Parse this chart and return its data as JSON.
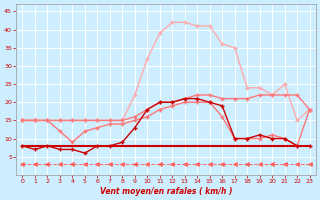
{
  "x": [
    0,
    1,
    2,
    3,
    4,
    5,
    6,
    7,
    8,
    9,
    10,
    11,
    12,
    13,
    14,
    15,
    16,
    17,
    18,
    19,
    20,
    21,
    22,
    23
  ],
  "line_dark1": [
    8,
    7,
    8,
    7,
    7,
    6,
    8,
    8,
    9,
    13,
    18,
    20,
    20,
    21,
    21,
    20,
    19,
    10,
    10,
    11,
    10,
    10,
    8,
    8
  ],
  "line_dark2": [
    8,
    8,
    8,
    8,
    8,
    8,
    8,
    8,
    8,
    8,
    8,
    8,
    8,
    8,
    8,
    8,
    8,
    8,
    8,
    8,
    8,
    8,
    8,
    8
  ],
  "line_med1": [
    15,
    15,
    15,
    12,
    9,
    12,
    13,
    14,
    14,
    15,
    16,
    18,
    19,
    20,
    20,
    20,
    16,
    10,
    10,
    10,
    11,
    10,
    8,
    18
  ],
  "line_med2": [
    15,
    15,
    15,
    15,
    15,
    15,
    15,
    15,
    15,
    16,
    18,
    20,
    20,
    21,
    22,
    22,
    21,
    21,
    21,
    22,
    22,
    22,
    22,
    18
  ],
  "line_light1": [
    15,
    15,
    15,
    15,
    15,
    15,
    15,
    15,
    15,
    22,
    32,
    39,
    42,
    42,
    41,
    41,
    36,
    35,
    24,
    24,
    22,
    25,
    15,
    18
  ],
  "line_dashed": [
    3,
    3,
    3,
    3,
    3,
    3,
    3,
    3,
    3,
    3,
    3,
    3,
    3,
    3,
    3,
    3,
    3,
    3,
    3,
    3,
    3,
    3,
    3,
    3
  ],
  "colors": {
    "dark": "#cc0000",
    "med": "#ff7777",
    "light": "#ffaaaa",
    "dashed": "#ff6666"
  },
  "background": "#cceeff",
  "grid_color": "#aadddd",
  "ylim": [
    0,
    47
  ],
  "xlim": [
    -0.5,
    23.5
  ],
  "yticks": [
    5,
    10,
    15,
    20,
    25,
    30,
    35,
    40,
    45
  ],
  "xticks": [
    0,
    1,
    2,
    3,
    4,
    5,
    6,
    7,
    8,
    9,
    10,
    11,
    12,
    13,
    14,
    15,
    16,
    17,
    18,
    19,
    20,
    21,
    22,
    23
  ],
  "xlabel": "Vent moyen/en rafales ( km/h )"
}
